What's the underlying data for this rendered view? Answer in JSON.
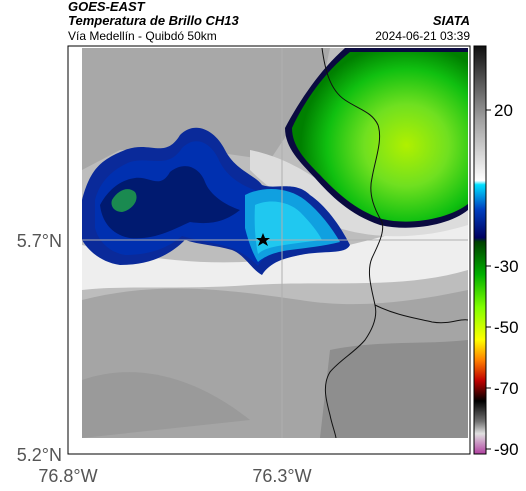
{
  "header": {
    "satellite": "GOES-EAST",
    "product": "Temperatura de Brillo CH13",
    "subtitle": "Vía Medellín - Quibdó 50km",
    "organization": "SIATA",
    "timestamp": "2024-06-21 03:39"
  },
  "map": {
    "lat_labels": [
      "5.7°N",
      "5.2°N"
    ],
    "lon_labels": [
      "76.8°W",
      "76.3°W"
    ],
    "marker_icon": "star-icon",
    "border_color": "#000000",
    "gridline_color": "#aaaaaa"
  },
  "colorbar": {
    "ticks": [
      "20",
      "-30",
      "-50",
      "-70",
      "-90"
    ],
    "range": [
      -95,
      45
    ],
    "colors": [
      "#b040a0",
      "#e0e0e0",
      "#606060",
      "#000000",
      "#c00000",
      "#ff8000",
      "#ffff00",
      "#80ff00",
      "#00c000",
      "#004000",
      "#0000a0",
      "#0080ff",
      "#00e0ff",
      "#ffffff",
      "#a0a0a0",
      "#101010"
    ]
  }
}
